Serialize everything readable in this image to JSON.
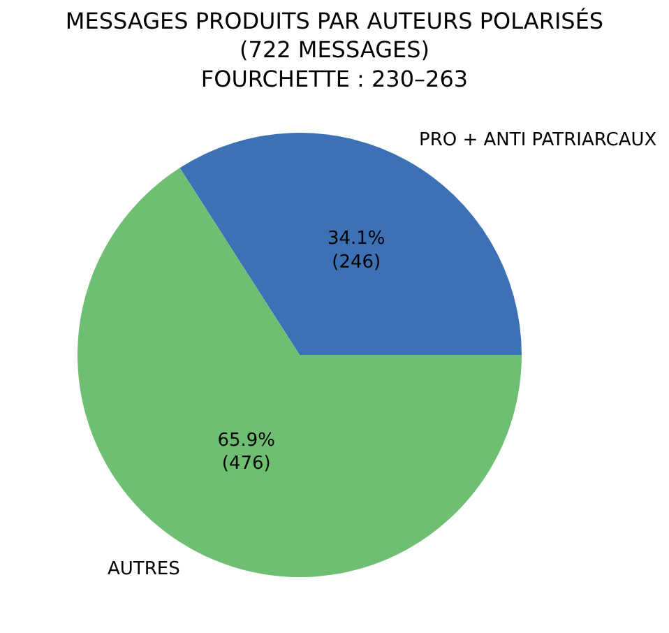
{
  "chart_data": {
    "type": "pie",
    "title": "MESSAGES PRODUITS PAR AUTEURS POLARISÉS\n(722 MESSAGES)\nFOURCHETTE : 230–263",
    "categories": [
      "PRO + ANTI PATRIARCAUX",
      "AUTRES"
    ],
    "values": [
      246,
      476
    ],
    "colors": [
      "#3d71b5",
      "#6ebf72"
    ],
    "value_labels": [
      "34.1%\n(246)",
      "65.9%\n(476)"
    ],
    "legend": false
  }
}
